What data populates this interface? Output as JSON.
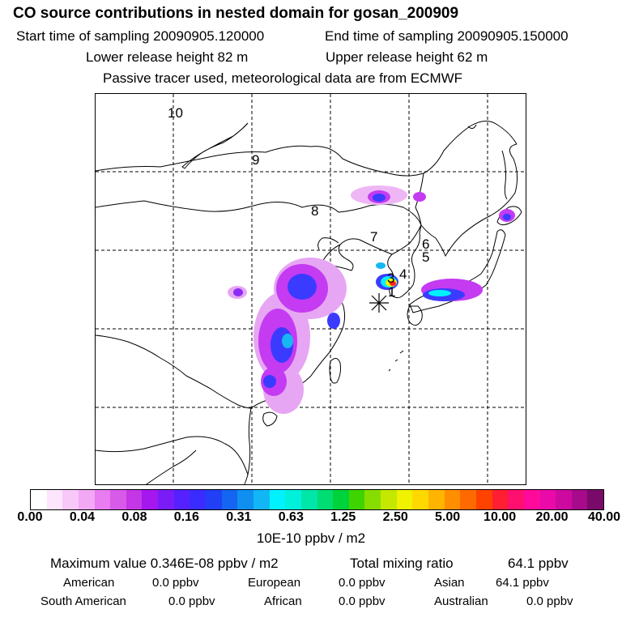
{
  "header": {
    "title": "CO  source contributions in nested domain for gosan_200909",
    "start_label": "Start time of sampling 20090905.120000",
    "end_label": "End time of sampling 20090905.150000",
    "lower_label": "Lower release height   82 m",
    "upper_label": "Upper release height   62 m",
    "note": "Passive tracer used, meteorological data are from ECMWF"
  },
  "map": {
    "day_labels": [
      "10",
      "9",
      "8",
      "7",
      "6",
      "5",
      "4",
      "3",
      "1"
    ],
    "receptor_marker": "star-asterisk-icon",
    "coastline_color": "#000000",
    "grid_style": "dashed"
  },
  "colorbar": {
    "tick_labels": [
      "0.00",
      "0.04",
      "0.08",
      "0.16",
      "0.31",
      "0.63",
      "1.25",
      "2.50",
      "5.00",
      "10.00",
      "20.00",
      "40.00"
    ],
    "unit_label": "10E-10 ppbv / m2",
    "colors": [
      "#ffffff",
      "#fde6fd",
      "#f8c8f8",
      "#f2a8f5",
      "#e87cf0",
      "#d85ae8",
      "#c536e6",
      "#a417ee",
      "#7a1cf7",
      "#5522ff",
      "#3a2bff",
      "#2140f5",
      "#1466f0",
      "#0f8ff0",
      "#13b6f5",
      "#00f2ff",
      "#00f0dc",
      "#00e6a8",
      "#00dd72",
      "#00d23c",
      "#3fd400",
      "#88dd00",
      "#c4e800",
      "#f0f200",
      "#ffd800",
      "#ffb400",
      "#ff8e00",
      "#ff6a00",
      "#ff4200",
      "#ff1e32",
      "#ff0f6e",
      "#ff0a9a",
      "#ea0aaa",
      "#cc0aa0",
      "#a80a8c",
      "#7a0a6a"
    ]
  },
  "stats": {
    "max_label": "Maximum value  0.346E-08 ppbv / m2",
    "total_label": "Total mixing ratio",
    "total_value": "64.1 ppbv",
    "regions": [
      {
        "name": "American",
        "value": "0.0 ppbv"
      },
      {
        "name": "European",
        "value": "0.0 ppbv"
      },
      {
        "name": "Asian",
        "value": "64.1 ppbv"
      },
      {
        "name": "South American",
        "value": "0.0 ppbv"
      },
      {
        "name": "African",
        "value": "0.0 ppbv"
      },
      {
        "name": "Australian",
        "value": "0.0 ppbv"
      }
    ]
  }
}
